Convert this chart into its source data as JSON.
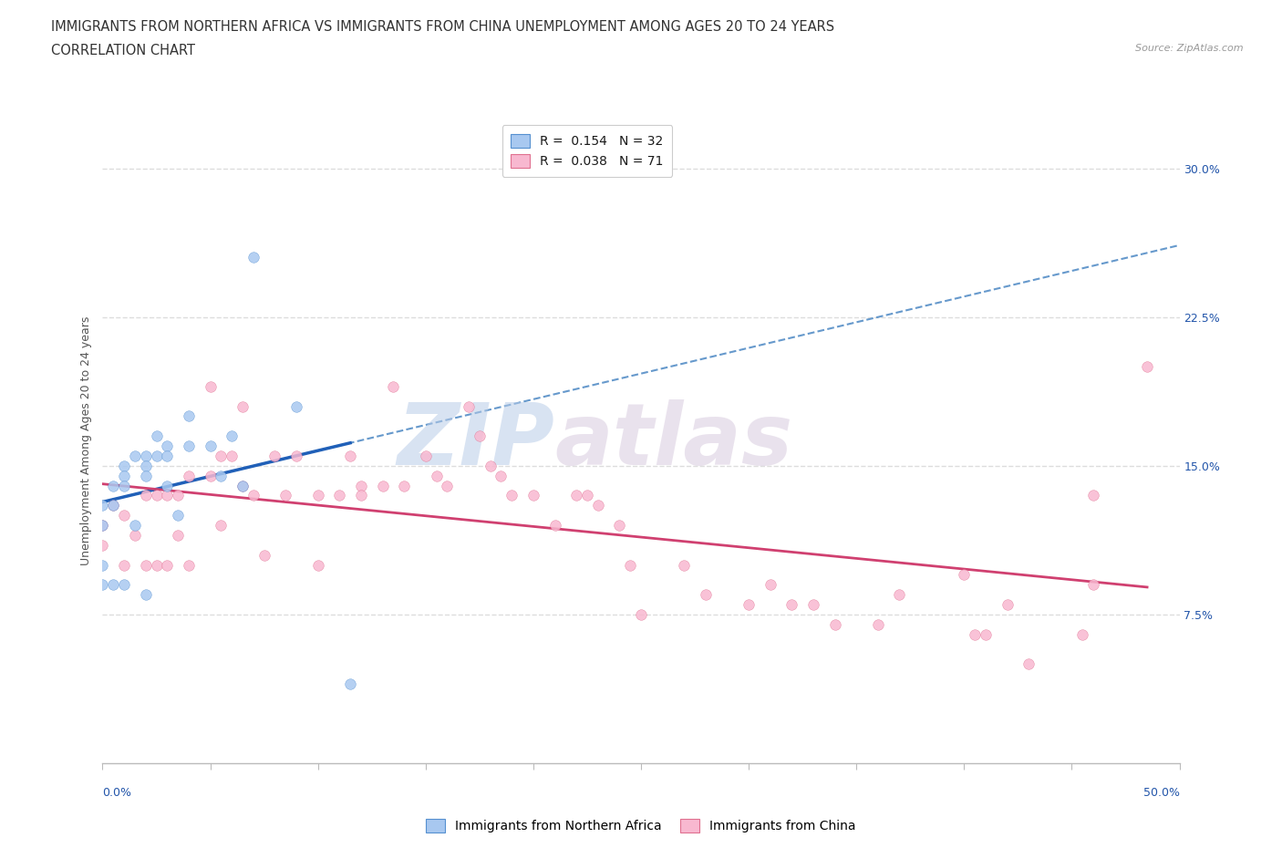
{
  "title_line1": "IMMIGRANTS FROM NORTHERN AFRICA VS IMMIGRANTS FROM CHINA UNEMPLOYMENT AMONG AGES 20 TO 24 YEARS",
  "title_line2": "CORRELATION CHART",
  "source_text": "Source: ZipAtlas.com",
  "ylabel": "Unemployment Among Ages 20 to 24 years",
  "ytick_vals": [
    0.075,
    0.15,
    0.225,
    0.3
  ],
  "ytick_labels": [
    "7.5%",
    "15.0%",
    "22.5%",
    "30.0%"
  ],
  "xlim": [
    0.0,
    0.5
  ],
  "ylim": [
    0.0,
    0.325
  ],
  "watermark_zip": "ZIP",
  "watermark_atlas": "atlas",
  "R_africa": "0.154",
  "N_africa": "32",
  "R_china": "0.038",
  "N_china": "71",
  "africa_scatter_color": "#a8c8f0",
  "africa_edge_color": "#5590d0",
  "africa_line_color": "#2060b8",
  "africa_dash_color": "#6699cc",
  "china_scatter_color": "#f8b8d0",
  "china_edge_color": "#e07090",
  "china_line_color": "#d04070",
  "grid_color": "#dddddd",
  "grid_style": "--",
  "background_color": "#ffffff",
  "africa_x": [
    0.0,
    0.0,
    0.0,
    0.0,
    0.005,
    0.005,
    0.005,
    0.01,
    0.01,
    0.01,
    0.01,
    0.015,
    0.015,
    0.02,
    0.02,
    0.02,
    0.02,
    0.025,
    0.025,
    0.03,
    0.03,
    0.03,
    0.035,
    0.04,
    0.04,
    0.05,
    0.055,
    0.06,
    0.065,
    0.07,
    0.09,
    0.115
  ],
  "africa_y": [
    0.13,
    0.12,
    0.1,
    0.09,
    0.14,
    0.13,
    0.09,
    0.15,
    0.145,
    0.14,
    0.09,
    0.155,
    0.12,
    0.155,
    0.15,
    0.145,
    0.085,
    0.165,
    0.155,
    0.16,
    0.155,
    0.14,
    0.125,
    0.175,
    0.16,
    0.16,
    0.145,
    0.165,
    0.14,
    0.255,
    0.18,
    0.04
  ],
  "china_x": [
    0.0,
    0.0,
    0.005,
    0.01,
    0.01,
    0.015,
    0.02,
    0.02,
    0.025,
    0.025,
    0.03,
    0.03,
    0.035,
    0.035,
    0.04,
    0.04,
    0.05,
    0.05,
    0.055,
    0.055,
    0.06,
    0.065,
    0.065,
    0.07,
    0.075,
    0.08,
    0.085,
    0.09,
    0.1,
    0.1,
    0.11,
    0.115,
    0.12,
    0.12,
    0.13,
    0.135,
    0.14,
    0.15,
    0.155,
    0.16,
    0.17,
    0.175,
    0.18,
    0.185,
    0.19,
    0.2,
    0.21,
    0.22,
    0.225,
    0.23,
    0.24,
    0.245,
    0.25,
    0.27,
    0.28,
    0.3,
    0.31,
    0.32,
    0.33,
    0.34,
    0.36,
    0.37,
    0.4,
    0.405,
    0.41,
    0.42,
    0.43,
    0.455,
    0.46,
    0.46,
    0.485
  ],
  "china_y": [
    0.12,
    0.11,
    0.13,
    0.125,
    0.1,
    0.115,
    0.135,
    0.1,
    0.135,
    0.1,
    0.135,
    0.1,
    0.135,
    0.115,
    0.145,
    0.1,
    0.19,
    0.145,
    0.155,
    0.12,
    0.155,
    0.18,
    0.14,
    0.135,
    0.105,
    0.155,
    0.135,
    0.155,
    0.135,
    0.1,
    0.135,
    0.155,
    0.14,
    0.135,
    0.14,
    0.19,
    0.14,
    0.155,
    0.145,
    0.14,
    0.18,
    0.165,
    0.15,
    0.145,
    0.135,
    0.135,
    0.12,
    0.135,
    0.135,
    0.13,
    0.12,
    0.1,
    0.075,
    0.1,
    0.085,
    0.08,
    0.09,
    0.08,
    0.08,
    0.07,
    0.07,
    0.085,
    0.095,
    0.065,
    0.065,
    0.08,
    0.05,
    0.065,
    0.135,
    0.09,
    0.2
  ],
  "legend_label_africa": "Immigrants from Northern Africa",
  "legend_label_china": "Immigrants from China",
  "title_fontsize": 10.5,
  "source_fontsize": 8,
  "tick_fontsize": 9,
  "legend_fontsize": 10,
  "ylabel_fontsize": 9
}
